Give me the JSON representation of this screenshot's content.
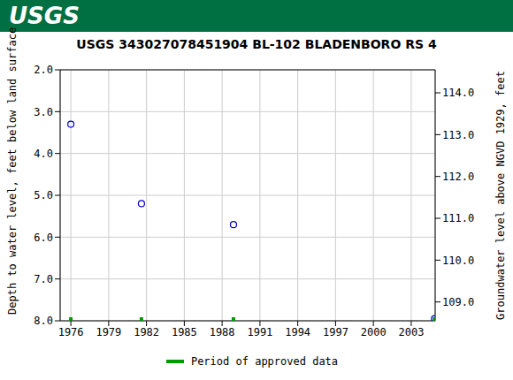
{
  "logo": "USGS",
  "chart_data": {
    "type": "scatter",
    "title": "USGS 343027078451904 BL-102 BLADENBORO RS 4",
    "y_label": "Depth to water level, feet below land surface",
    "y2_label": "Groundwater level above NGVD 1929, feet",
    "grid": true,
    "xlim": [
      1975.15,
      2004.9
    ],
    "xticks": [
      1976,
      1979,
      1982,
      1985,
      1988,
      1991,
      1994,
      1997,
      2000,
      2003
    ],
    "ylim": [
      2.0,
      8.0
    ],
    "yticks": [
      {
        "value": 2,
        "label": "2.0"
      },
      {
        "value": 3,
        "label": "3.0"
      },
      {
        "value": 4,
        "label": "4.0"
      },
      {
        "value": 5,
        "label": "5.0"
      },
      {
        "value": 6,
        "label": "6.0"
      },
      {
        "value": 7,
        "label": "7.0"
      },
      {
        "value": 8,
        "label": "8.0"
      }
    ],
    "y2lim": [
      108.55,
      114.55
    ],
    "y2ticks": [
      {
        "value": 109,
        "label": "109.0"
      },
      {
        "value": 110,
        "label": "110.0"
      },
      {
        "value": 111,
        "label": "111.0"
      },
      {
        "value": 112,
        "label": "112.0"
      },
      {
        "value": 113,
        "label": "113.0"
      },
      {
        "value": 114,
        "label": "114.0"
      }
    ],
    "series": [
      {
        "color": "#0000cc",
        "marker": "circle-open",
        "x": [
          1976.0,
          1981.6,
          1988.9,
          2004.85
        ],
        "values": [
          3.3,
          5.2,
          5.7,
          7.95
        ]
      },
      {
        "name": "Period of approved data",
        "color": "#009900",
        "marker": "line",
        "x": [
          1976.0,
          1981.6,
          1988.9,
          2004.85
        ],
        "values": [
          8.0,
          8.0,
          8.0,
          8.0
        ]
      }
    ]
  }
}
